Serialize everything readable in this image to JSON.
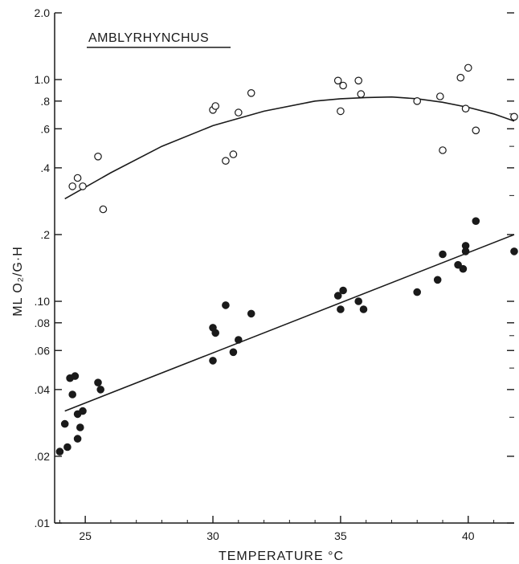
{
  "chart_data": {
    "type": "scatter",
    "title": "AMBLYRHYNCHUS",
    "xlabel": "TEMPERATURE °C",
    "ylabel": "ML O₂/G·H",
    "y_scale": "log",
    "xlim": [
      23.8,
      41.8
    ],
    "ylim": [
      0.01,
      2.0
    ],
    "grid": false,
    "x_ticks": [
      {
        "value": 25,
        "label": "25"
      },
      {
        "value": 30,
        "label": "30"
      },
      {
        "value": 35,
        "label": "35"
      },
      {
        "value": 40,
        "label": "40"
      }
    ],
    "y_ticks": [
      {
        "value": 2.0,
        "label": "2.0"
      },
      {
        "value": 1.0,
        "label": "1.0"
      },
      {
        "value": 0.8,
        "label": ".8"
      },
      {
        "value": 0.6,
        "label": ".6"
      },
      {
        "value": 0.4,
        "label": ".4"
      },
      {
        "value": 0.2,
        "label": ".2"
      },
      {
        "value": 0.1,
        "label": ".10"
      },
      {
        "value": 0.08,
        "label": ".08"
      },
      {
        "value": 0.06,
        "label": ".06"
      },
      {
        "value": 0.04,
        "label": ".04"
      },
      {
        "value": 0.02,
        "label": ".02"
      },
      {
        "value": 0.01,
        "label": ".01"
      }
    ],
    "series": [
      {
        "marker": "open-circle",
        "points": [
          [
            24.5,
            0.33
          ],
          [
            24.7,
            0.36
          ],
          [
            24.9,
            0.33
          ],
          [
            25.5,
            0.45
          ],
          [
            25.7,
            0.26
          ],
          [
            30.0,
            0.73
          ],
          [
            30.1,
            0.76
          ],
          [
            30.5,
            0.43
          ],
          [
            30.8,
            0.46
          ],
          [
            31.0,
            0.71
          ],
          [
            31.5,
            0.87
          ],
          [
            34.9,
            0.99
          ],
          [
            35.0,
            0.72
          ],
          [
            35.1,
            0.94
          ],
          [
            35.7,
            0.99
          ],
          [
            35.8,
            0.86
          ],
          [
            38.0,
            0.8
          ],
          [
            38.9,
            0.84
          ],
          [
            39.0,
            0.48
          ],
          [
            39.7,
            1.02
          ],
          [
            39.9,
            0.74
          ],
          [
            40.0,
            1.13
          ],
          [
            40.3,
            0.59
          ],
          [
            41.8,
            0.68
          ]
        ],
        "fit": [
          [
            24.2,
            0.29
          ],
          [
            26.0,
            0.38
          ],
          [
            28.0,
            0.5
          ],
          [
            30.0,
            0.62
          ],
          [
            32.0,
            0.72
          ],
          [
            34.0,
            0.8
          ],
          [
            35.0,
            0.82
          ],
          [
            36.0,
            0.83
          ],
          [
            37.0,
            0.835
          ],
          [
            38.0,
            0.82
          ],
          [
            39.0,
            0.79
          ],
          [
            40.0,
            0.75
          ],
          [
            41.0,
            0.7
          ],
          [
            41.8,
            0.65
          ]
        ]
      },
      {
        "marker": "filled-circle",
        "points": [
          [
            24.0,
            0.021
          ],
          [
            24.2,
            0.028
          ],
          [
            24.3,
            0.022
          ],
          [
            24.4,
            0.045
          ],
          [
            24.5,
            0.038
          ],
          [
            24.6,
            0.046
          ],
          [
            24.7,
            0.031
          ],
          [
            24.7,
            0.024
          ],
          [
            24.8,
            0.027
          ],
          [
            24.9,
            0.032
          ],
          [
            25.5,
            0.043
          ],
          [
            25.6,
            0.04
          ],
          [
            30.0,
            0.076
          ],
          [
            30.0,
            0.054
          ],
          [
            30.1,
            0.072
          ],
          [
            30.5,
            0.096
          ],
          [
            30.8,
            0.059
          ],
          [
            31.0,
            0.067
          ],
          [
            31.5,
            0.088
          ],
          [
            34.9,
            0.106
          ],
          [
            35.0,
            0.092
          ],
          [
            35.1,
            0.112
          ],
          [
            35.7,
            0.1
          ],
          [
            35.9,
            0.092
          ],
          [
            38.0,
            0.11
          ],
          [
            38.8,
            0.125
          ],
          [
            39.0,
            0.163
          ],
          [
            39.6,
            0.146
          ],
          [
            39.8,
            0.14
          ],
          [
            39.9,
            0.178
          ],
          [
            39.9,
            0.168
          ],
          [
            40.3,
            0.23
          ],
          [
            41.8,
            0.168
          ]
        ],
        "fit": [
          [
            24.2,
            0.032
          ],
          [
            41.8,
            0.2
          ]
        ]
      }
    ]
  }
}
